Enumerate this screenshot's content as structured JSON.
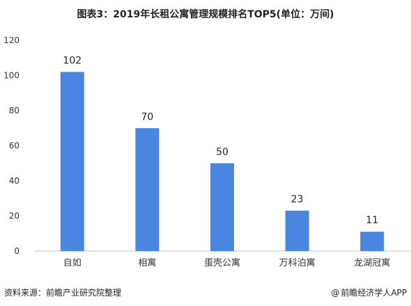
{
  "title": "图表3：2019年长租公寓管理规模排名TOP5(单位：万间)",
  "footer": {
    "source": "资料来源：前瞻产业研究院整理",
    "credit_at": "@",
    "credit": "前瞻经济学人APP"
  },
  "colors": {
    "bar": "#4A86E0",
    "axis": "#BFBFBF",
    "text": "#333333"
  },
  "chart_data": {
    "type": "bar",
    "title": "图表3：2019年长租公寓管理规模排名TOP5(单位：万间)",
    "categories": [
      "自如",
      "相寓",
      "蛋壳公寓",
      "万科泊寓",
      "龙湖冠寓"
    ],
    "values": [
      102,
      70,
      50,
      23,
      11
    ],
    "data_labels": [
      "102",
      "70",
      "50",
      "23",
      "11"
    ],
    "ylim": [
      0,
      120
    ],
    "yticks": [
      "0",
      "20",
      "40",
      "60",
      "80",
      "100",
      "120"
    ],
    "xlabel": "",
    "ylabel": "",
    "grid": false,
    "legend": "none"
  }
}
